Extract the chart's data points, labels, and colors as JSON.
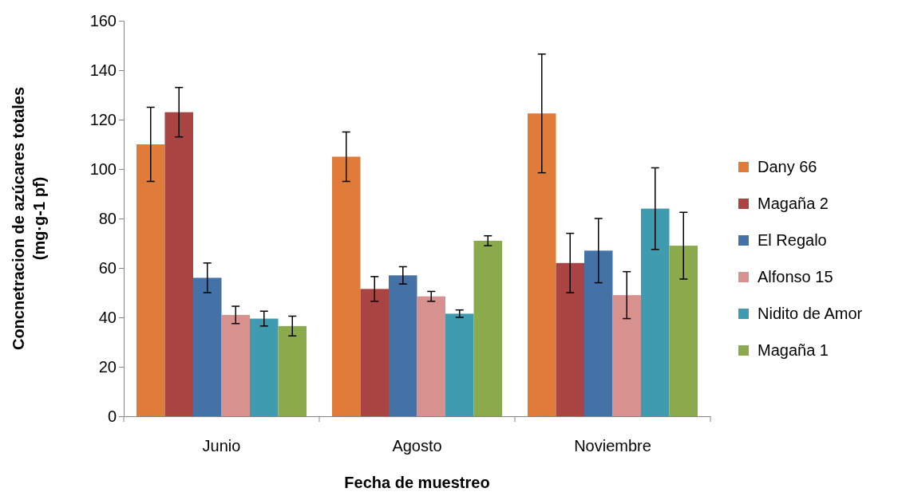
{
  "chart_data": {
    "type": "bar",
    "xlabel": "Fecha de muestreo",
    "ylabel": "Concnetracion de azúcares totales (mg·g-1 pf)",
    "categories": [
      "Junio",
      "Agosto",
      "Noviembre"
    ],
    "series": [
      {
        "name": "Dany 66",
        "color": "#e07b39",
        "values": [
          110,
          105,
          122.5
        ],
        "errors": [
          15,
          10,
          24
        ]
      },
      {
        "name": "Magaña 2",
        "color": "#a94442",
        "values": [
          123,
          51.5,
          62
        ],
        "errors": [
          10,
          5,
          12
        ]
      },
      {
        "name": "El Regalo",
        "color": "#4471a6",
        "values": [
          56,
          57,
          67
        ],
        "errors": [
          6,
          3.5,
          13
        ]
      },
      {
        "name": "Alfonso 15",
        "color": "#d79290",
        "values": [
          41,
          48.5,
          49
        ],
        "errors": [
          3.5,
          2,
          9.5
        ]
      },
      {
        "name": "Nidito de Amor",
        "color": "#3f9bb0",
        "values": [
          39.5,
          41.5,
          84
        ],
        "errors": [
          3,
          1.5,
          16.5
        ]
      },
      {
        "name": "Magaña 1",
        "color": "#8aaa4b",
        "values": [
          36.5,
          71,
          69
        ],
        "errors": [
          4,
          2,
          13.5
        ]
      }
    ],
    "ylim": [
      0,
      160
    ],
    "yticks": [
      0,
      20,
      40,
      60,
      80,
      100,
      120,
      140,
      160
    ],
    "grid": false,
    "legend": "right"
  }
}
